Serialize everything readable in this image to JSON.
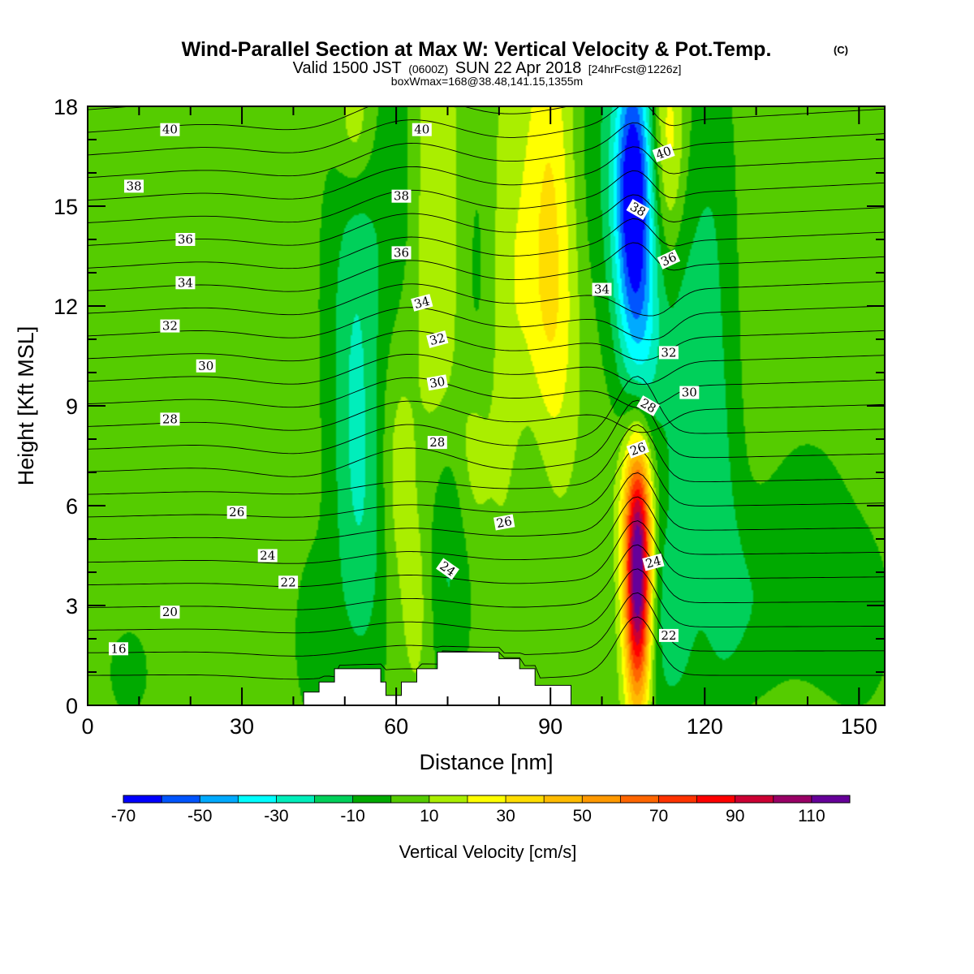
{
  "title": {
    "main": "Wind-Parallel Section at Max W: Vertical Velocity & Pot.Temp.",
    "copyright": "(C)",
    "valid_prefix": "Valid 1500 JST",
    "valid_z": "(0600Z)",
    "valid_date": "SUN 22 Apr 2018",
    "valid_fcst": "[24hrFcst@1226z]",
    "box": "boxWmax=168@38.48,141.15,1355m"
  },
  "colors": {
    "background_green": "#55cc00",
    "terrain": "#ffffff",
    "contour_line": "#000000"
  },
  "chart_data": {
    "type": "heatmap",
    "xlabel": "Distance [nm]",
    "ylabel": "Height [Kft MSL]",
    "xlim": [
      0,
      155
    ],
    "ylim": [
      0,
      18
    ],
    "x_ticks": [
      "0",
      "30",
      "60",
      "90",
      "120",
      "150"
    ],
    "y_ticks": [
      "0",
      "3",
      "6",
      "9",
      "12",
      "15",
      "18"
    ],
    "colorbar": {
      "title": "Vertical Velocity [cm/s]",
      "tick_labels": [
        "-70",
        "-50",
        "-30",
        "-10",
        "10",
        "30",
        "50",
        "70",
        "90",
        "110"
      ],
      "bounds": [
        -70,
        -60,
        -50,
        -40,
        -30,
        -20,
        -10,
        0,
        10,
        20,
        30,
        40,
        50,
        60,
        70,
        80,
        90,
        100,
        110,
        120
      ],
      "colors": [
        "#0000ff",
        "#0055ff",
        "#00aaff",
        "#00ffff",
        "#00eebb",
        "#00d05a",
        "#00aa00",
        "#55cc00",
        "#aaee00",
        "#ffff00",
        "#ffdd00",
        "#ffbb00",
        "#ff9900",
        "#ff6600",
        "#ff3300",
        "#ff0000",
        "#cc0033",
        "#990066",
        "#660099"
      ]
    },
    "terrain": [
      {
        "x": 0,
        "h": 0
      },
      {
        "x": 42,
        "h": 0
      },
      {
        "x": 42,
        "h": 0.4
      },
      {
        "x": 45,
        "h": 0.4
      },
      {
        "x": 45,
        "h": 0.7
      },
      {
        "x": 48,
        "h": 0.7
      },
      {
        "x": 48,
        "h": 1.1
      },
      {
        "x": 57,
        "h": 1.1
      },
      {
        "x": 57,
        "h": 0.7
      },
      {
        "x": 58,
        "h": 0.7
      },
      {
        "x": 58,
        "h": 0.3
      },
      {
        "x": 61,
        "h": 0.3
      },
      {
        "x": 61,
        "h": 0.7
      },
      {
        "x": 64,
        "h": 0.7
      },
      {
        "x": 64,
        "h": 1.1
      },
      {
        "x": 68,
        "h": 1.1
      },
      {
        "x": 68,
        "h": 1.6
      },
      {
        "x": 80,
        "h": 1.6
      },
      {
        "x": 80,
        "h": 1.4
      },
      {
        "x": 84,
        "h": 1.4
      },
      {
        "x": 84,
        "h": 1.1
      },
      {
        "x": 87,
        "h": 1.1
      },
      {
        "x": 87,
        "h": 0.6
      },
      {
        "x": 94,
        "h": 0.6
      },
      {
        "x": 94,
        "h": 0
      },
      {
        "x": 155,
        "h": 0
      }
    ],
    "w_features": [
      {
        "x": 107,
        "y": 3.8,
        "sx": 1.8,
        "sy": 2.6,
        "value": 125
      },
      {
        "x": 107,
        "y": 6.5,
        "sx": 3.0,
        "sy": 1.8,
        "value": 20
      },
      {
        "x": 106,
        "y": 15.5,
        "sx": 2.5,
        "sy": 3.0,
        "value": -60
      },
      {
        "x": 108,
        "y": 11.0,
        "sx": 3.0,
        "sy": 4.0,
        "value": -30
      },
      {
        "x": 102,
        "y": 16.5,
        "sx": 6.0,
        "sy": 4.0,
        "value": -14
      },
      {
        "x": 90,
        "y": 15.5,
        "sx": 3.5,
        "sy": 4.5,
        "value": 25
      },
      {
        "x": 90,
        "y": 10.5,
        "sx": 4.0,
        "sy": 3.0,
        "value": 12
      },
      {
        "x": 113,
        "y": 16.8,
        "sx": 2.5,
        "sy": 2.5,
        "value": 28
      },
      {
        "x": 116,
        "y": 10.0,
        "sx": 3.0,
        "sy": 6.0,
        "value": -18
      },
      {
        "x": 122,
        "y": 14.0,
        "sx": 3.0,
        "sy": 5.0,
        "value": -12
      },
      {
        "x": 123,
        "y": 5.5,
        "sx": 3.0,
        "sy": 4.0,
        "value": -14
      },
      {
        "x": 112,
        "y": 2.5,
        "sx": 4.0,
        "sy": 2.5,
        "value": -16
      },
      {
        "x": 52,
        "y": 8.0,
        "sx": 3.5,
        "sy": 5.0,
        "value": -22
      },
      {
        "x": 54,
        "y": 14.0,
        "sx": 6.0,
        "sy": 4.0,
        "value": -10
      },
      {
        "x": 57,
        "y": 4.5,
        "sx": 4.0,
        "sy": 3.0,
        "value": -10
      },
      {
        "x": 60,
        "y": 6.5,
        "sx": 2.5,
        "sy": 3.0,
        "value": 16
      },
      {
        "x": 68,
        "y": 14.0,
        "sx": 3.0,
        "sy": 5.5,
        "value": 15
      },
      {
        "x": 70,
        "y": 4.5,
        "sx": 3.0,
        "sy": 3.0,
        "value": -18
      },
      {
        "x": 76,
        "y": 12.0,
        "sx": 2.5,
        "sy": 5.0,
        "value": -8
      },
      {
        "x": 75,
        "y": 7.5,
        "sx": 2.5,
        "sy": 2.0,
        "value": 14
      },
      {
        "x": 52,
        "y": 17.5,
        "sx": 2.5,
        "sy": 1.5,
        "value": 18
      },
      {
        "x": 60,
        "y": 16.5,
        "sx": 2.0,
        "sy": 3.0,
        "value": -8
      },
      {
        "x": 86,
        "y": 6.5,
        "sx": 3.0,
        "sy": 3.0,
        "value": -10
      },
      {
        "x": 82,
        "y": 12.0,
        "sx": 3.0,
        "sy": 6.0,
        "value": 12
      },
      {
        "x": 128,
        "y": 3.0,
        "sx": 5.0,
        "sy": 2.0,
        "value": -12
      },
      {
        "x": 140,
        "y": 4.5,
        "sx": 6.0,
        "sy": 2.5,
        "value": -12
      },
      {
        "x": 150,
        "y": 2.5,
        "sx": 5.0,
        "sy": 2.0,
        "value": -10
      },
      {
        "x": 8,
        "y": 1.0,
        "sx": 3.0,
        "sy": 1.0,
        "value": -10
      },
      {
        "x": 44,
        "y": 2.0,
        "sx": 3.0,
        "sy": 2.0,
        "value": -10
      },
      {
        "x": 64,
        "y": 3.0,
        "sx": 2.0,
        "sy": 2.0,
        "value": 10
      }
    ],
    "theta_levels": [
      16,
      18,
      20,
      22,
      24,
      26,
      28,
      30,
      32,
      34,
      36,
      38,
      40
    ],
    "theta_contour_labels": [
      {
        "label": "40",
        "x": 16,
        "y": 17.3,
        "angle": 0
      },
      {
        "label": "40",
        "x": 65,
        "y": 17.3,
        "angle": 0
      },
      {
        "label": "40",
        "x": 112,
        "y": 16.6,
        "angle": -20
      },
      {
        "label": "38",
        "x": 9,
        "y": 15.6,
        "angle": 0
      },
      {
        "label": "38",
        "x": 61,
        "y": 15.3,
        "angle": 0
      },
      {
        "label": "38",
        "x": 107,
        "y": 14.9,
        "angle": 30
      },
      {
        "label": "36",
        "x": 19,
        "y": 14.0,
        "angle": 0
      },
      {
        "label": "36",
        "x": 61,
        "y": 13.6,
        "angle": 0
      },
      {
        "label": "36",
        "x": 113,
        "y": 13.4,
        "angle": -25
      },
      {
        "label": "34",
        "x": 19,
        "y": 12.7,
        "angle": 0
      },
      {
        "label": "34",
        "x": 65,
        "y": 12.1,
        "angle": -15
      },
      {
        "label": "34",
        "x": 100,
        "y": 12.5,
        "angle": 0
      },
      {
        "label": "32",
        "x": 16,
        "y": 11.4,
        "angle": 0
      },
      {
        "label": "32",
        "x": 68,
        "y": 11.0,
        "angle": -15
      },
      {
        "label": "32",
        "x": 113,
        "y": 10.6,
        "angle": 0
      },
      {
        "label": "30",
        "x": 23,
        "y": 10.2,
        "angle": 0
      },
      {
        "label": "30",
        "x": 68,
        "y": 9.7,
        "angle": -10
      },
      {
        "label": "30",
        "x": 117,
        "y": 9.4,
        "angle": 0
      },
      {
        "label": "28",
        "x": 16,
        "y": 8.6,
        "angle": 0
      },
      {
        "label": "28",
        "x": 68,
        "y": 7.9,
        "angle": 0
      },
      {
        "label": "28",
        "x": 109,
        "y": 9.0,
        "angle": 30
      },
      {
        "label": "26",
        "x": 29,
        "y": 5.8,
        "angle": 0
      },
      {
        "label": "26",
        "x": 81,
        "y": 5.5,
        "angle": -10
      },
      {
        "label": "26",
        "x": 107,
        "y": 7.7,
        "angle": -20
      },
      {
        "label": "24",
        "x": 35,
        "y": 4.5,
        "angle": 0
      },
      {
        "label": "24",
        "x": 70,
        "y": 4.1,
        "angle": 35
      },
      {
        "label": "24",
        "x": 110,
        "y": 4.3,
        "angle": -15
      },
      {
        "label": "22",
        "x": 39,
        "y": 3.7,
        "angle": 0
      },
      {
        "label": "22",
        "x": 113,
        "y": 2.1,
        "angle": 0
      },
      {
        "label": "20",
        "x": 16,
        "y": 2.8,
        "angle": 0
      },
      {
        "label": "16",
        "x": 6,
        "y": 1.7,
        "angle": 0
      }
    ]
  }
}
